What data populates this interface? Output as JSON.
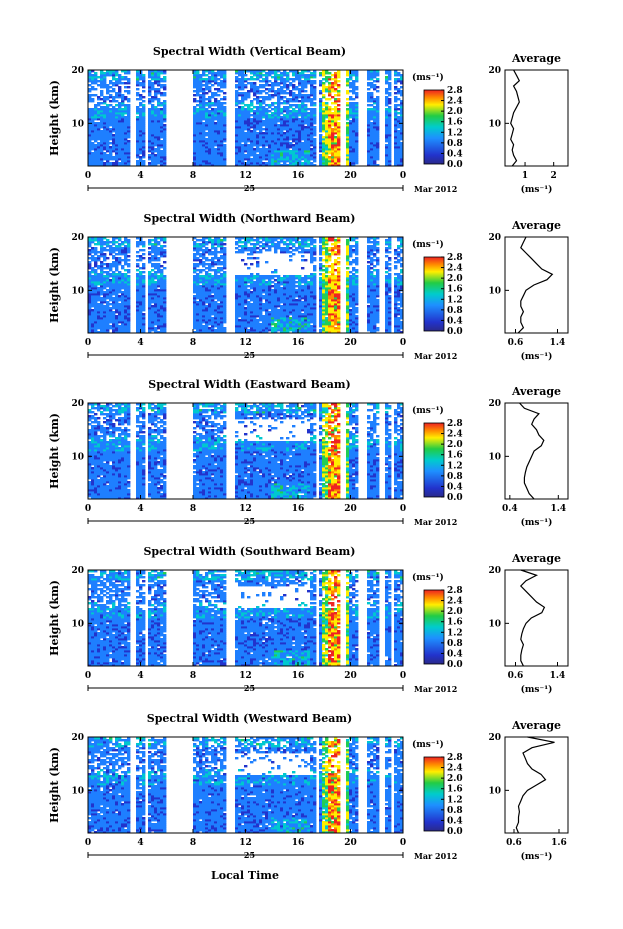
{
  "chart_data": {
    "type": "heatmap",
    "shared": {
      "x_ticks": [
        "0",
        "4",
        "8",
        "12",
        "16",
        "20",
        "0"
      ],
      "x_range": [
        0,
        24
      ],
      "date_day": "25",
      "date_month_year": "Mar 2012",
      "x_label": "Local Time",
      "y_label": "Height (km)",
      "y_ticks": [
        "20",
        "10"
      ],
      "y_range": [
        2,
        20
      ],
      "colorbar_unit": "(ms⁻¹)",
      "colorbar_ticks": [
        "2.8",
        "2.4",
        "2.0",
        "1.6",
        "1.2",
        "0.8",
        "0.4",
        "0.0"
      ],
      "colorbar_range": [
        0.0,
        2.8
      ],
      "avg_title": "Average",
      "avg_unit": "(ms⁻¹)",
      "gap_hours": [
        [
          3.2,
          3.6
        ],
        [
          4.3,
          4.6
        ],
        [
          6.0,
          8.0
        ],
        [
          10.6,
          11.1
        ],
        [
          17.3,
          17.6
        ],
        [
          19.3,
          19.6
        ],
        [
          20.6,
          21.2
        ],
        [
          22.2,
          22.6
        ],
        [
          23.1,
          23.4
        ]
      ],
      "colors": {
        "low": "#2233cc",
        "mid": "#00cccc",
        "high": "#ffee00",
        "max": "#ee2222"
      }
    },
    "panels": [
      {
        "title": "Spectral Width (Vertical Beam)",
        "avg_ticks": [
          "1",
          "2"
        ],
        "avg_range": [
          0.3,
          2.5
        ],
        "avg_profile": [
          [
            0.55,
            2
          ],
          [
            0.7,
            3
          ],
          [
            0.6,
            4
          ],
          [
            0.55,
            5
          ],
          [
            0.6,
            6
          ],
          [
            0.5,
            7
          ],
          [
            0.55,
            8
          ],
          [
            0.6,
            9
          ],
          [
            0.5,
            10
          ],
          [
            0.55,
            11
          ],
          [
            0.6,
            12
          ],
          [
            0.7,
            13
          ],
          [
            0.8,
            14
          ],
          [
            0.75,
            15
          ],
          [
            0.7,
            16
          ],
          [
            0.6,
            17
          ],
          [
            0.8,
            18
          ],
          [
            0.7,
            19
          ],
          [
            0.6,
            20
          ]
        ]
      },
      {
        "title": "Spectral Width (Northward Beam)",
        "avg_ticks": [
          "0.6",
          "1.4"
        ],
        "avg_range": [
          0.4,
          1.6
        ],
        "avg_profile": [
          [
            0.65,
            2
          ],
          [
            0.75,
            3
          ],
          [
            0.7,
            4
          ],
          [
            0.7,
            5
          ],
          [
            0.75,
            6
          ],
          [
            0.7,
            7
          ],
          [
            0.7,
            8
          ],
          [
            0.75,
            9
          ],
          [
            0.8,
            10
          ],
          [
            0.95,
            11
          ],
          [
            1.2,
            12
          ],
          [
            1.3,
            13
          ],
          [
            1.1,
            14
          ],
          [
            1.0,
            15
          ],
          [
            0.9,
            16
          ],
          [
            0.8,
            17
          ],
          [
            0.7,
            18
          ],
          [
            0.75,
            19
          ],
          [
            0.8,
            20
          ]
        ]
      },
      {
        "title": "Spectral Width (Eastward Beam)",
        "avg_ticks": [
          "0.4",
          "1.4"
        ],
        "avg_range": [
          0.3,
          1.6
        ],
        "avg_profile": [
          [
            0.9,
            2
          ],
          [
            0.8,
            3
          ],
          [
            0.75,
            4
          ],
          [
            0.7,
            5
          ],
          [
            0.7,
            6
          ],
          [
            0.72,
            7
          ],
          [
            0.75,
            8
          ],
          [
            0.8,
            9
          ],
          [
            0.85,
            10
          ],
          [
            0.9,
            11
          ],
          [
            1.05,
            12
          ],
          [
            1.1,
            13
          ],
          [
            1.0,
            14
          ],
          [
            0.95,
            15
          ],
          [
            0.85,
            16
          ],
          [
            0.9,
            17
          ],
          [
            1.0,
            18
          ],
          [
            0.7,
            19
          ],
          [
            0.6,
            20
          ]
        ]
      },
      {
        "title": "Spectral Width (Southward Beam)",
        "avg_ticks": [
          "0.6",
          "1.4"
        ],
        "avg_range": [
          0.4,
          1.6
        ],
        "avg_profile": [
          [
            0.75,
            2
          ],
          [
            0.7,
            3
          ],
          [
            0.7,
            4
          ],
          [
            0.72,
            5
          ],
          [
            0.75,
            6
          ],
          [
            0.7,
            7
          ],
          [
            0.72,
            8
          ],
          [
            0.75,
            9
          ],
          [
            0.8,
            10
          ],
          [
            0.9,
            11
          ],
          [
            1.1,
            12
          ],
          [
            1.15,
            13
          ],
          [
            1.0,
            14
          ],
          [
            0.9,
            15
          ],
          [
            0.8,
            16
          ],
          [
            0.7,
            17
          ],
          [
            0.8,
            18
          ],
          [
            1.0,
            19
          ],
          [
            0.7,
            20
          ]
        ]
      },
      {
        "title": "Spectral Width (Westward Beam)",
        "avg_ticks": [
          "0.6",
          "1.6"
        ],
        "avg_range": [
          0.4,
          1.8
        ],
        "avg_profile": [
          [
            0.7,
            2
          ],
          [
            0.65,
            3
          ],
          [
            0.7,
            4
          ],
          [
            0.7,
            5
          ],
          [
            0.72,
            6
          ],
          [
            0.7,
            7
          ],
          [
            0.75,
            8
          ],
          [
            0.8,
            9
          ],
          [
            0.9,
            10
          ],
          [
            1.1,
            11
          ],
          [
            1.3,
            12
          ],
          [
            1.2,
            13
          ],
          [
            1.0,
            14
          ],
          [
            0.9,
            15
          ],
          [
            0.85,
            16
          ],
          [
            0.8,
            17
          ],
          [
            1.0,
            18
          ],
          [
            1.5,
            19
          ],
          [
            0.9,
            20
          ]
        ]
      }
    ]
  }
}
